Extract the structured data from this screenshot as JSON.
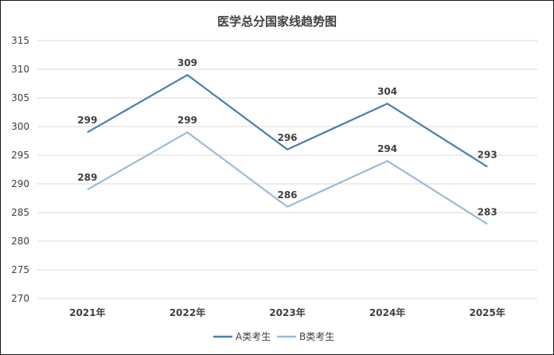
{
  "chart_data": {
    "type": "line",
    "title": "医学总分国家线趋势图",
    "categories": [
      "2021年",
      "2022年",
      "2023年",
      "2024年",
      "2025年"
    ],
    "series": [
      {
        "name": "A类考生",
        "values": [
          299,
          309,
          296,
          304,
          293
        ],
        "color": "#4a7eb0"
      },
      {
        "name": "B类考生",
        "values": [
          289,
          299,
          286,
          294,
          283
        ],
        "color": "#9bbbd9"
      }
    ],
    "ylim": [
      270,
      315
    ],
    "yticks": [
      270,
      275,
      280,
      285,
      290,
      295,
      300,
      305,
      310,
      315
    ],
    "grid": true,
    "legend_position": "bottom"
  }
}
